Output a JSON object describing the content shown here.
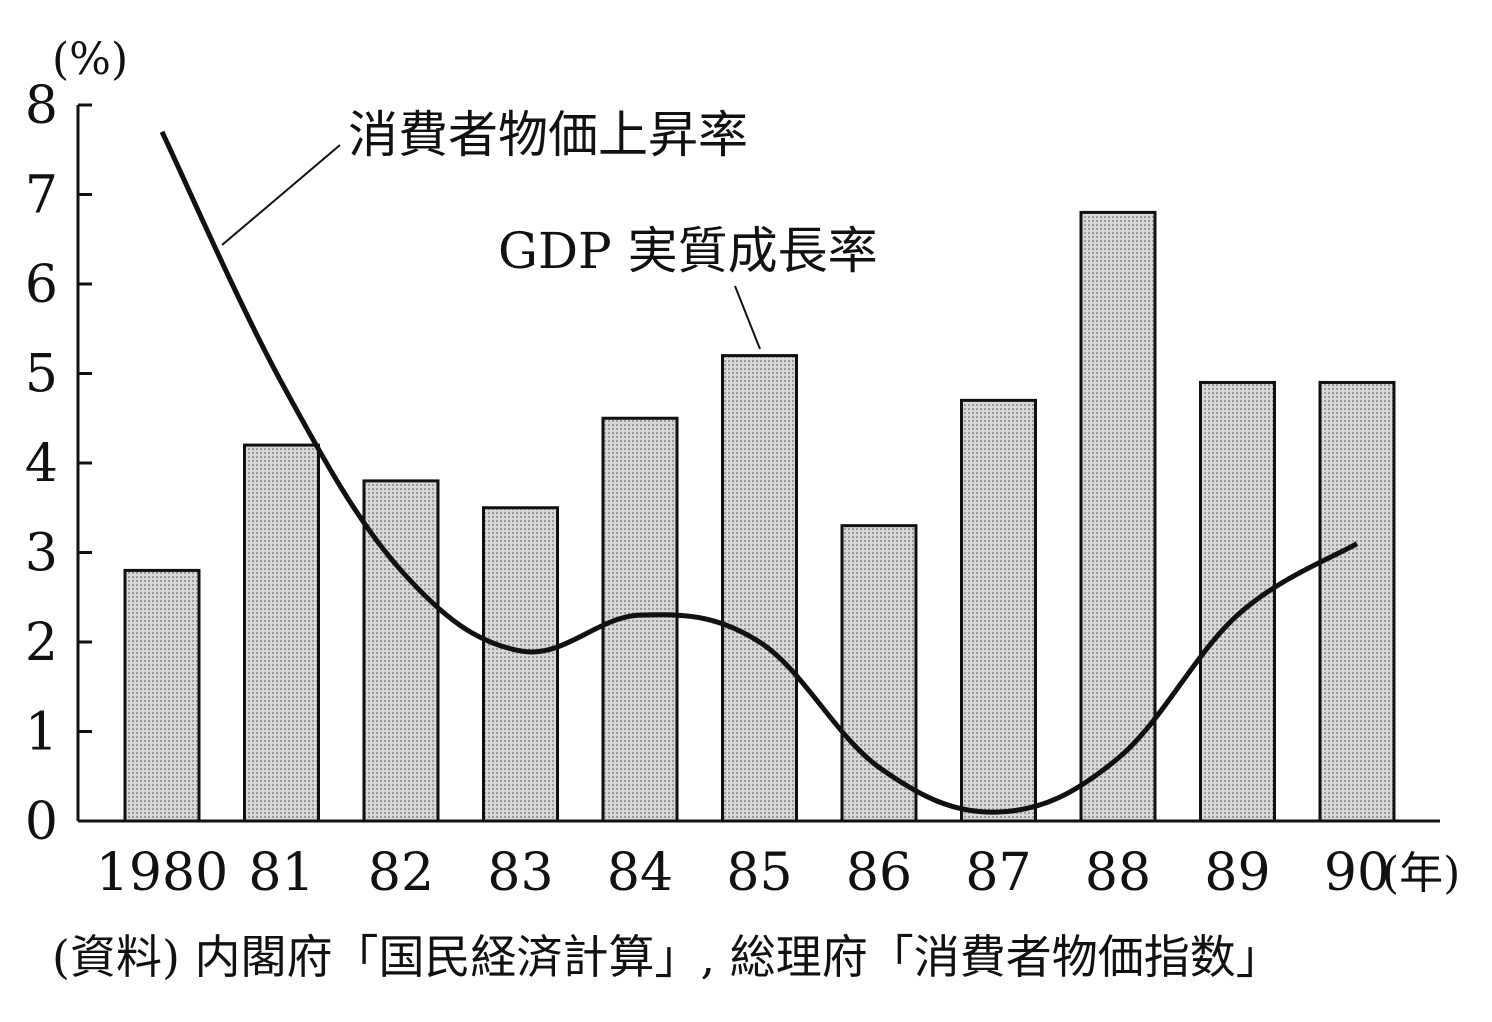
{
  "chart_data": {
    "type": "bar",
    "categories": [
      "1980",
      "81",
      "82",
      "83",
      "84",
      "85",
      "86",
      "87",
      "88",
      "89",
      "90"
    ],
    "series": [
      {
        "name": "GDP 実質成長率",
        "type": "bar",
        "values": [
          2.8,
          4.2,
          3.8,
          3.5,
          4.5,
          5.2,
          3.3,
          4.7,
          6.8,
          4.9,
          4.9
        ]
      },
      {
        "name": "消費者物価上昇率",
        "type": "line",
        "values": [
          7.7,
          4.9,
          2.8,
          1.9,
          2.3,
          2.0,
          0.6,
          0.1,
          0.7,
          2.3,
          3.1
        ]
      }
    ],
    "ylabel": "(%)",
    "xlabel": "(年)",
    "ylim": [
      0,
      8
    ],
    "yticks": [
      "0",
      "1",
      "2",
      "3",
      "4",
      "5",
      "6",
      "7",
      "8"
    ],
    "grid": false,
    "colors": {
      "bar_fill": "#d4d4d4",
      "stroke": "#111111"
    }
  },
  "source": "(資料) 内閣府「国民経済計算」, 総理府「消費者物価指数」"
}
